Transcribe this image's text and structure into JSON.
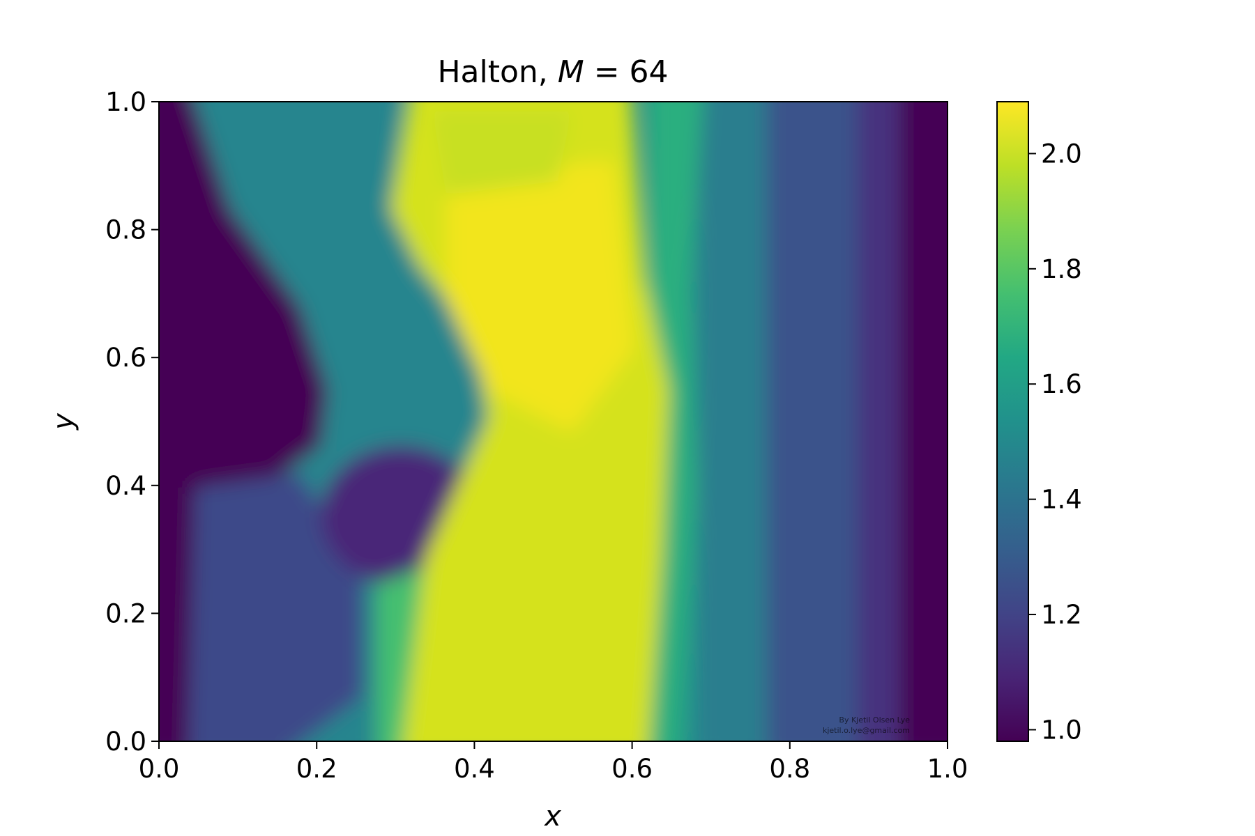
{
  "chart_data": {
    "type": "heatmap",
    "title_prefix": "Halton, ",
    "title_math_var": "M",
    "title_math_rest": " = 64",
    "xlabel": "x",
    "ylabel": "y",
    "xlim": [
      0.0,
      1.0
    ],
    "ylim": [
      0.0,
      1.0
    ],
    "x_ticks": [
      "0.0",
      "0.2",
      "0.4",
      "0.6",
      "0.8",
      "1.0"
    ],
    "y_ticks": [
      "0.0",
      "0.2",
      "0.4",
      "0.6",
      "0.8",
      "1.0"
    ],
    "colorbar": {
      "colormap": "viridis",
      "range": [
        0.98,
        2.09
      ],
      "ticks": [
        "1.0",
        "1.2",
        "1.4",
        "1.6",
        "1.8",
        "2.0"
      ]
    },
    "watermark": [
      "By Kjetil Olsen Lye",
      "kjetil.o.lye@gmail.com"
    ],
    "grid": false
  }
}
